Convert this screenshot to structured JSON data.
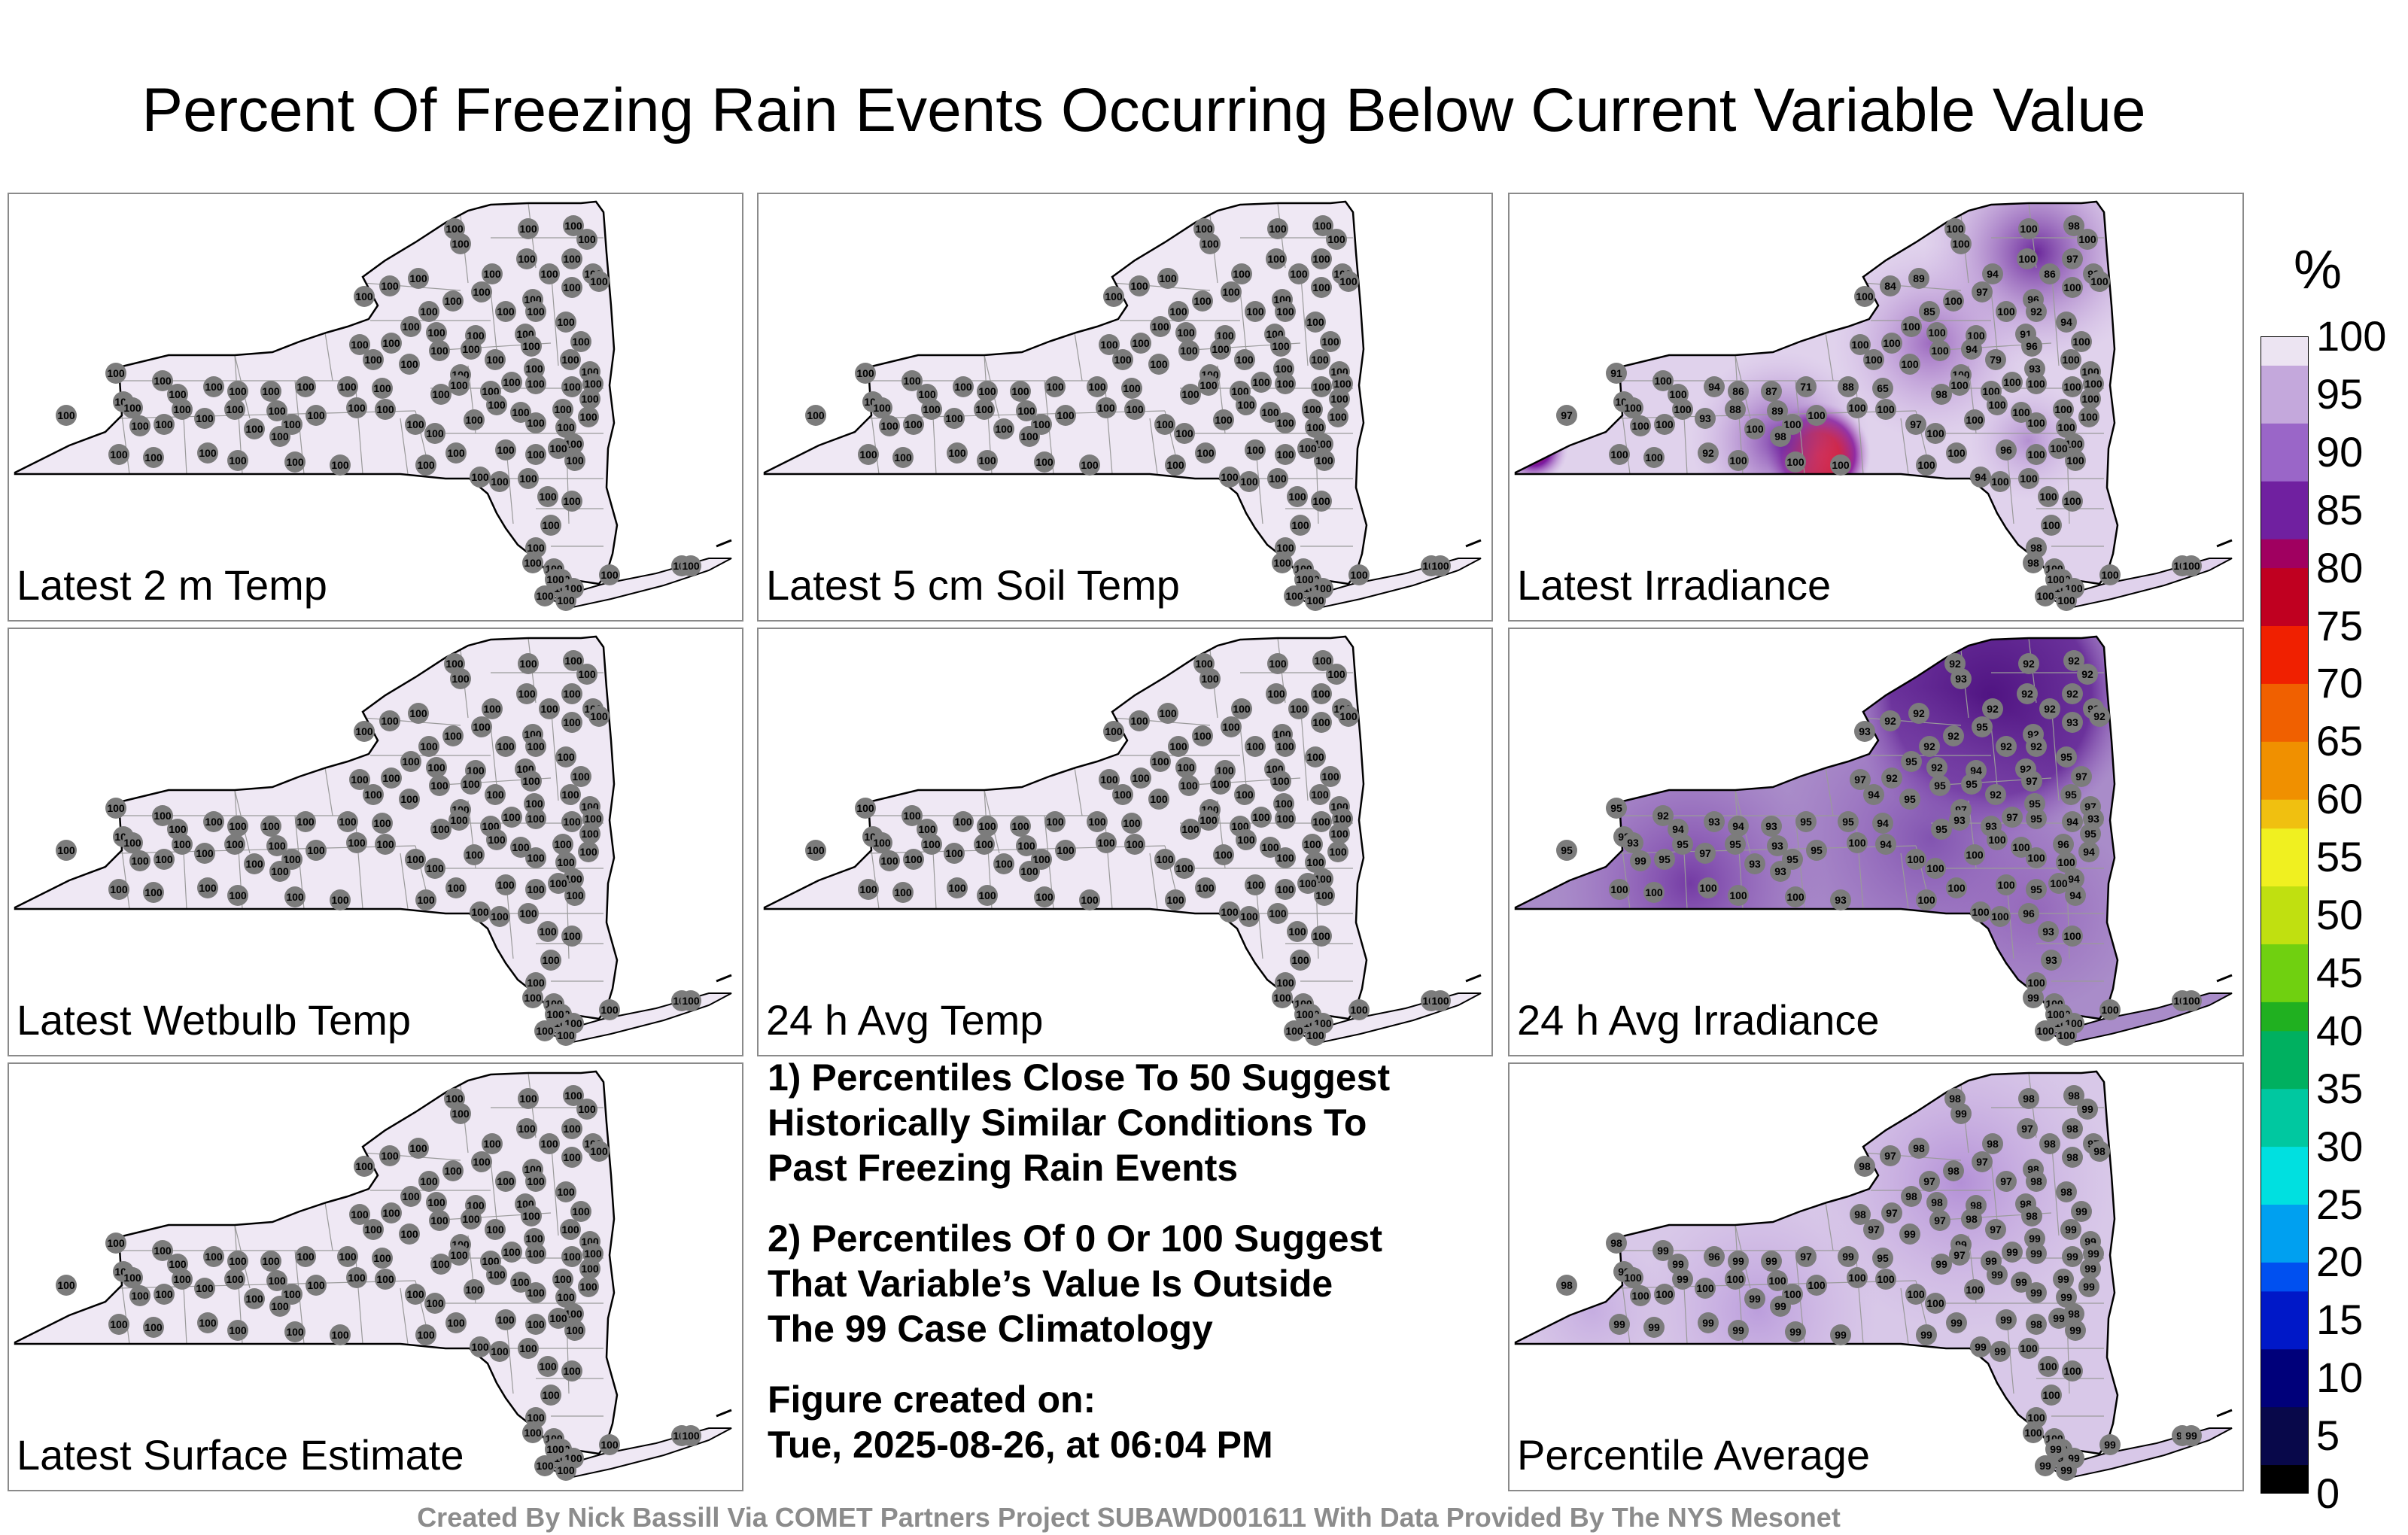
{
  "title": "Percent Of Freezing Rain Events Occurring Below Current Variable Value",
  "panels": [
    {
      "id": "p1",
      "label": "Latest 2 m Temp",
      "shading": "uniform",
      "base": 100
    },
    {
      "id": "p2",
      "label": "Latest 5 cm Soil Temp",
      "shading": "uniform",
      "base": 100
    },
    {
      "id": "p3",
      "label": "Latest Irradiance",
      "shading": "irradiance",
      "base": 100,
      "overrides": {
        "2": 98,
        "6": 97,
        "7": 93,
        "8": 94,
        "9": 86,
        "10": 89,
        "11": 84,
        "14": 97,
        "15": 96,
        "19": 92,
        "20": 85,
        "25": 94,
        "26": 91,
        "27": 96,
        "28": 94,
        "35": 79,
        "36": 93,
        "40": 91,
        "45": 94,
        "46": 86,
        "47": 87,
        "48": 71,
        "49": 88,
        "50": 65,
        "51": 98,
        "60": 97,
        "64": 93,
        "65": 88,
        "66": 89,
        "69": 98,
        "73": 97,
        "82": 92,
        "89": 96,
        "93": 94,
        "99": 98,
        "100": 98
      }
    },
    {
      "id": "p4",
      "label": "Latest Wetbulb Temp",
      "shading": "uniform",
      "base": 100
    },
    {
      "id": "p5",
      "label": "24 h Avg Temp",
      "shading": "uniform",
      "base": 100
    },
    {
      "id": "p6",
      "label": "24 h Avg Irradiance",
      "shading": "avgirr",
      "base": 100,
      "overrides": {
        "0": 92,
        "1": 92,
        "2": 92,
        "3": 92,
        "4": 93,
        "5": 92,
        "6": 92,
        "7": 92,
        "8": 92,
        "9": 92,
        "10": 92,
        "11": 92,
        "12": 93,
        "13": 92,
        "14": 95,
        "15": 92,
        "16": 93,
        "17": 92,
        "18": 92,
        "19": 92,
        "20": 92,
        "21": 95,
        "22": 92,
        "23": 94,
        "24": 95,
        "25": 95,
        "26": 92,
        "27": 97,
        "28": 95,
        "29": 97,
        "30": 92,
        "31": 97,
        "32": 94,
        "33": 95,
        "34": 97,
        "35": 92,
        "36": 95,
        "37": 95,
        "38": 97,
        "39": 93,
        "40": 95,
        "41": 92,
        "42": 94,
        "43": 98,
        "44": 95,
        "45": 93,
        "46": 94,
        "47": 93,
        "48": 95,
        "49": 95,
        "50": 94,
        "51": 95,
        "52": 93,
        "53": 93,
        "54": 97,
        "55": 95,
        "56": 94,
        "57": 95,
        "58": 96,
        "59": 94,
        "60": 95,
        "61": 93,
        "62": 99,
        "63": 95,
        "64": 97,
        "65": 95,
        "66": 93,
        "67": 95,
        "68": 93,
        "69": 93,
        "70": 95,
        "72": 94,
        "80": 94,
        "85": 93,
        "90": 95,
        "92": 94,
        "95": 96,
        "96": 93,
        "98": 93,
        "100": 99
      }
    },
    {
      "id": "p7",
      "label": "Latest Surface Estimate",
      "shading": "uniform",
      "base": 100
    },
    {
      "id": "p8",
      "label": "Percentile Average",
      "shading": "average",
      "base": 99,
      "overrides": {
        "0": 98,
        "1": 98,
        "2": 98,
        "3": 99,
        "5": 97,
        "6": 98,
        "7": 97,
        "8": 98,
        "9": 98,
        "10": 98,
        "11": 97,
        "12": 98,
        "13": 98,
        "14": 97,
        "15": 98,
        "16": 98,
        "17": 98,
        "18": 97,
        "19": 98,
        "20": 97,
        "21": 98,
        "22": 98,
        "23": 98,
        "24": 97,
        "25": 98,
        "26": 98,
        "27": 98,
        "28": 98,
        "30": 97,
        "31": 98,
        "32": 97,
        "35": 97,
        "40": 98,
        "45": 96,
        "48": 97,
        "50": 95,
        "52": 97,
        "60": 98,
        "61": 100,
        "62": 100,
        "63": 100,
        "64": 100,
        "65": 100,
        "66": 100,
        "67": 100,
        "70": 100,
        "71": 100,
        "72": 100,
        "73": 100,
        "74": 100,
        "75": 100,
        "80": 98,
        "90": 98,
        "95": 100,
        "96": 100,
        "97": 100,
        "98": 100,
        "99": 100,
        "100": 100,
        "101": 100
      }
    }
  ],
  "notes": [
    "1) Percentiles Close To 50 Suggest\nHistorically Similar Conditions To\nPast Freezing Rain Events",
    "2) Percentiles Of 0 Or 100 Suggest\nThat Variable’s Value Is Outside\nThe 99 Case Climatology",
    "Figure created on:\nTue, 2025-08-26, at 06:04 PM"
  ],
  "credit": "Created By Nick Bassill Via COMET Partners Project SUBAWD001611 With Data Provided By The NYS Mesonet",
  "colorbar": {
    "unit": "%",
    "ticks": [
      "0",
      "5",
      "10",
      "15",
      "20",
      "25",
      "30",
      "35",
      "40",
      "45",
      "50",
      "55",
      "60",
      "65",
      "70",
      "75",
      "80",
      "85",
      "90",
      "95",
      "100"
    ],
    "colors": [
      "#000000",
      "#08084a",
      "#00007a",
      "#0018c8",
      "#0050f0",
      "#00a0f0",
      "#00e0e0",
      "#00c8a0",
      "#00b060",
      "#20b020",
      "#70d010",
      "#c0e010",
      "#f0f020",
      "#f0c010",
      "#f09000",
      "#f06000",
      "#f02000",
      "#c00020",
      "#a00060",
      "#7020a0",
      "#9a66c8",
      "#c4a8dc",
      "#ece4f2"
    ]
  }
}
